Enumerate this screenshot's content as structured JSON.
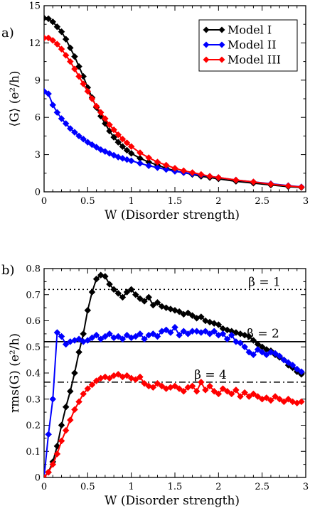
{
  "chart_data": [
    {
      "type": "line",
      "panel_label": "a)",
      "xlabel": "W (Disorder strength)",
      "ylabel": "⟨G⟩  (e²/h)",
      "xlim": [
        0,
        3
      ],
      "ylim": [
        0,
        15
      ],
      "xticks": [
        0,
        0.5,
        1,
        1.5,
        2,
        2.5,
        3
      ],
      "xtick_labels": [
        "0",
        "0.5",
        "1",
        "1.5",
        "2",
        "2.5",
        "3"
      ],
      "yticks": [
        0,
        3,
        6,
        9,
        12,
        15
      ],
      "ytick_labels": [
        "0",
        "3",
        "6",
        "9",
        "12",
        "15"
      ],
      "legend_position": "top-right",
      "series": [
        {
          "name": "Model I",
          "color": "#000000",
          "x": [
            0,
            0.05,
            0.1,
            0.15,
            0.2,
            0.25,
            0.3,
            0.35,
            0.4,
            0.45,
            0.5,
            0.55,
            0.6,
            0.65,
            0.7,
            0.75,
            0.8,
            0.85,
            0.9,
            0.95,
            1.0,
            1.1,
            1.2,
            1.3,
            1.4,
            1.5,
            1.6,
            1.7,
            1.8,
            1.9,
            2.0,
            2.2,
            2.4,
            2.6,
            2.8,
            2.95
          ],
          "y": [
            14.0,
            13.95,
            13.7,
            13.3,
            12.9,
            12.3,
            11.6,
            10.9,
            10.1,
            9.3,
            8.4,
            7.6,
            6.8,
            6.1,
            5.5,
            4.9,
            4.4,
            4.0,
            3.65,
            3.35,
            3.1,
            2.7,
            2.4,
            2.15,
            1.9,
            1.7,
            1.55,
            1.4,
            1.25,
            1.15,
            1.05,
            0.85,
            0.7,
            0.55,
            0.42,
            0.35
          ]
        },
        {
          "name": "Model II",
          "color": "#0000ff",
          "x": [
            0,
            0.05,
            0.1,
            0.15,
            0.2,
            0.25,
            0.3,
            0.35,
            0.4,
            0.45,
            0.5,
            0.55,
            0.6,
            0.65,
            0.7,
            0.75,
            0.8,
            0.85,
            0.9,
            0.95,
            1.0,
            1.1,
            1.2,
            1.3,
            1.4,
            1.5,
            1.6,
            1.7,
            1.8,
            1.9,
            2.0,
            2.2,
            2.4,
            2.6,
            2.8,
            2.95
          ],
          "y": [
            8.1,
            7.9,
            7.0,
            6.4,
            5.9,
            5.5,
            5.1,
            4.8,
            4.5,
            4.25,
            4.0,
            3.8,
            3.6,
            3.4,
            3.25,
            3.1,
            2.95,
            2.8,
            2.7,
            2.6,
            2.5,
            2.3,
            2.1,
            1.95,
            1.8,
            1.65,
            1.55,
            1.45,
            1.35,
            1.25,
            1.15,
            0.95,
            0.8,
            0.65,
            0.5,
            0.4
          ]
        },
        {
          "name": "Model III",
          "color": "#ff0000",
          "x": [
            0,
            0.05,
            0.1,
            0.15,
            0.2,
            0.25,
            0.3,
            0.35,
            0.4,
            0.45,
            0.5,
            0.55,
            0.6,
            0.65,
            0.7,
            0.75,
            0.8,
            0.85,
            0.9,
            0.95,
            1.0,
            1.1,
            1.2,
            1.3,
            1.4,
            1.5,
            1.6,
            1.7,
            1.8,
            1.9,
            2.0,
            2.2,
            2.4,
            2.6,
            2.8,
            2.95
          ],
          "y": [
            12.4,
            12.4,
            12.2,
            11.9,
            11.5,
            11.0,
            10.5,
            9.9,
            9.3,
            8.7,
            8.1,
            7.5,
            6.9,
            6.4,
            5.9,
            5.4,
            5.0,
            4.6,
            4.25,
            3.95,
            3.65,
            3.15,
            2.75,
            2.4,
            2.15,
            1.9,
            1.7,
            1.55,
            1.4,
            1.25,
            1.15,
            0.95,
            0.8,
            0.62,
            0.48,
            0.38
          ]
        }
      ]
    },
    {
      "type": "line",
      "panel_label": "b)",
      "xlabel": "W (Disorder strength)",
      "ylabel": "rms(G)  (e²/h)",
      "xlim": [
        0,
        3
      ],
      "ylim": [
        0,
        0.8
      ],
      "xticks": [
        0,
        0.5,
        1,
        1.5,
        2,
        2.5,
        3
      ],
      "xtick_labels": [
        "0",
        "0.5",
        "1",
        "1.5",
        "2",
        "2.5",
        "3"
      ],
      "yticks": [
        0,
        0.1,
        0.2,
        0.3,
        0.4,
        0.5,
        0.6,
        0.7,
        0.8
      ],
      "ytick_labels": [
        "0",
        "0.1",
        "0.2",
        "0.3",
        "0.4",
        "0.5",
        "0.6",
        "0.7",
        "0.8"
      ],
      "reference_lines": [
        {
          "label": "β = 1",
          "y": 0.72,
          "style": "dotted"
        },
        {
          "label": "β = 2",
          "y": 0.52,
          "style": "solid"
        },
        {
          "label": "β = 4",
          "y": 0.365,
          "style": "dashdot"
        }
      ],
      "series": [
        {
          "name": "Model I",
          "color": "#000000",
          "x": [
            0,
            0.05,
            0.1,
            0.15,
            0.2,
            0.25,
            0.3,
            0.35,
            0.4,
            0.45,
            0.5,
            0.55,
            0.6,
            0.65,
            0.7,
            0.75,
            0.8,
            0.85,
            0.9,
            0.95,
            1.0,
            1.05,
            1.1,
            1.15,
            1.2,
            1.25,
            1.3,
            1.35,
            1.4,
            1.45,
            1.5,
            1.55,
            1.6,
            1.65,
            1.7,
            1.75,
            1.8,
            1.85,
            1.9,
            1.95,
            2.0,
            2.05,
            2.1,
            2.15,
            2.2,
            2.25,
            2.3,
            2.35,
            2.4,
            2.45,
            2.5,
            2.55,
            2.6,
            2.65,
            2.7,
            2.75,
            2.8,
            2.85,
            2.9,
            2.95
          ],
          "y": [
            0.0,
            0.02,
            0.06,
            0.12,
            0.2,
            0.27,
            0.33,
            0.4,
            0.48,
            0.55,
            0.64,
            0.71,
            0.76,
            0.775,
            0.77,
            0.74,
            0.72,
            0.705,
            0.69,
            0.71,
            0.72,
            0.7,
            0.685,
            0.675,
            0.69,
            0.66,
            0.67,
            0.655,
            0.65,
            0.645,
            0.64,
            0.635,
            0.625,
            0.63,
            0.62,
            0.61,
            0.615,
            0.6,
            0.595,
            0.59,
            0.585,
            0.57,
            0.565,
            0.56,
            0.555,
            0.55,
            0.545,
            0.54,
            0.525,
            0.51,
            0.5,
            0.49,
            0.485,
            0.47,
            0.46,
            0.45,
            0.43,
            0.42,
            0.405,
            0.395
          ]
        },
        {
          "name": "Model II",
          "color": "#0000ff",
          "x": [
            0,
            0.05,
            0.1,
            0.15,
            0.2,
            0.25,
            0.3,
            0.35,
            0.4,
            0.45,
            0.5,
            0.55,
            0.6,
            0.65,
            0.7,
            0.75,
            0.8,
            0.85,
            0.9,
            0.95,
            1.0,
            1.05,
            1.1,
            1.15,
            1.2,
            1.25,
            1.3,
            1.35,
            1.4,
            1.45,
            1.5,
            1.55,
            1.6,
            1.65,
            1.7,
            1.75,
            1.8,
            1.85,
            1.9,
            1.95,
            2.0,
            2.05,
            2.1,
            2.15,
            2.2,
            2.25,
            2.3,
            2.35,
            2.4,
            2.45,
            2.5,
            2.55,
            2.6,
            2.65,
            2.7,
            2.75,
            2.8,
            2.85,
            2.9,
            2.95
          ],
          "y": [
            0.0,
            0.165,
            0.3,
            0.555,
            0.54,
            0.51,
            0.52,
            0.525,
            0.53,
            0.52,
            0.525,
            0.535,
            0.545,
            0.53,
            0.54,
            0.55,
            0.535,
            0.54,
            0.53,
            0.545,
            0.535,
            0.54,
            0.55,
            0.53,
            0.545,
            0.55,
            0.54,
            0.56,
            0.565,
            0.555,
            0.575,
            0.545,
            0.56,
            0.55,
            0.56,
            0.56,
            0.555,
            0.56,
            0.55,
            0.56,
            0.545,
            0.55,
            0.53,
            0.545,
            0.52,
            0.515,
            0.5,
            0.48,
            0.47,
            0.49,
            0.48,
            0.47,
            0.48,
            0.475,
            0.465,
            0.45,
            0.44,
            0.43,
            0.415,
            0.405
          ]
        },
        {
          "name": "Model III",
          "color": "#ff0000",
          "x": [
            0,
            0.05,
            0.1,
            0.15,
            0.2,
            0.25,
            0.3,
            0.35,
            0.4,
            0.45,
            0.5,
            0.55,
            0.6,
            0.65,
            0.7,
            0.75,
            0.8,
            0.85,
            0.9,
            0.95,
            1.0,
            1.05,
            1.1,
            1.15,
            1.2,
            1.25,
            1.3,
            1.35,
            1.4,
            1.45,
            1.5,
            1.55,
            1.6,
            1.65,
            1.7,
            1.75,
            1.8,
            1.85,
            1.9,
            1.95,
            2.0,
            2.05,
            2.1,
            2.15,
            2.2,
            2.25,
            2.3,
            2.35,
            2.4,
            2.45,
            2.5,
            2.55,
            2.6,
            2.65,
            2.7,
            2.75,
            2.8,
            2.85,
            2.9,
            2.95
          ],
          "y": [
            0.0,
            0.02,
            0.05,
            0.09,
            0.14,
            0.18,
            0.22,
            0.26,
            0.29,
            0.32,
            0.34,
            0.355,
            0.37,
            0.38,
            0.385,
            0.38,
            0.39,
            0.395,
            0.385,
            0.39,
            0.38,
            0.375,
            0.385,
            0.36,
            0.35,
            0.345,
            0.36,
            0.35,
            0.34,
            0.345,
            0.35,
            0.34,
            0.33,
            0.345,
            0.35,
            0.33,
            0.365,
            0.335,
            0.35,
            0.33,
            0.32,
            0.34,
            0.33,
            0.32,
            0.335,
            0.31,
            0.325,
            0.31,
            0.32,
            0.31,
            0.3,
            0.305,
            0.295,
            0.31,
            0.3,
            0.29,
            0.3,
            0.29,
            0.285,
            0.29
          ]
        }
      ]
    }
  ]
}
